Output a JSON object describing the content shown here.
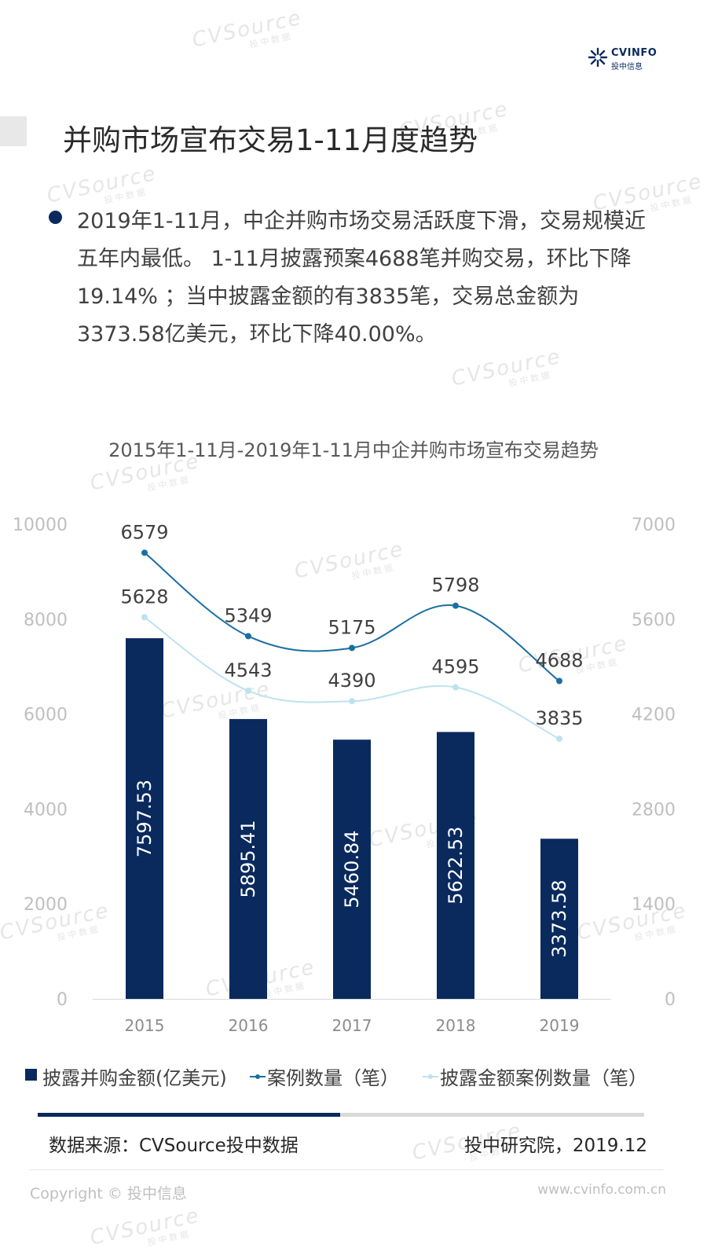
{
  "header": {
    "logo_name": "CVINFO",
    "logo_sub": "投中信息",
    "page_title": "并购市场宣布交易1-11月度趋势"
  },
  "summary": "2019年1-11月，中企并购市场交易活跃度下滑，交易规模近五年内最低。 1-11月披露预案4688笔并购交易，环比下降19.14% ；当中披露金额的有3835笔，交易总金额为3373.58亿美元，环比下降40.00%。",
  "chart_data": {
    "type": "bar+line",
    "title": "2015年1-11月-2019年1-11月中企并购市场宣布交易趋势",
    "categories": [
      "2015",
      "2016",
      "2017",
      "2018",
      "2019"
    ],
    "y_left": {
      "ylim": [
        0,
        10000
      ],
      "ticks": [
        "0",
        "2000",
        "4000",
        "6000",
        "8000",
        "10000"
      ]
    },
    "y_right": {
      "ylim": [
        0,
        7000
      ],
      "ticks": [
        "0",
        "1400",
        "2800",
        "4200",
        "5600",
        "7000"
      ]
    },
    "series": [
      {
        "name": "披露并购金额(亿美元)",
        "type": "bar",
        "axis": "left",
        "color": "#0a2a5e",
        "values": [
          7597.53,
          5895.41,
          5460.84,
          5622.53,
          3373.58
        ],
        "labels": [
          "7597.53",
          "5895.41",
          "5460.84",
          "5622.53",
          "3373.58"
        ]
      },
      {
        "name": "案例数量（笔）",
        "type": "line",
        "axis": "right",
        "color": "#1b6fa0",
        "values": [
          6579,
          5349,
          5175,
          5798,
          4688
        ],
        "labels": [
          "6579",
          "5349",
          "5175",
          "5798",
          "4688"
        ]
      },
      {
        "name": "披露金额案例数量（笔）",
        "type": "line",
        "axis": "right",
        "color": "#bde2ef",
        "values": [
          5628,
          4543,
          4390,
          4595,
          3835
        ],
        "labels": [
          "5628",
          "4543",
          "4390",
          "4595",
          "3835"
        ]
      }
    ],
    "legend_position": "bottom",
    "grid": false
  },
  "footer": {
    "source": "数据来源：CVSource投中数据",
    "credit": "投中研究院，2019.12",
    "copyright": "Copyright © 投中信息",
    "website": "www.cvinfo.com.cn"
  },
  "watermark": {
    "text": "CVSource",
    "sub": "投中数据"
  }
}
